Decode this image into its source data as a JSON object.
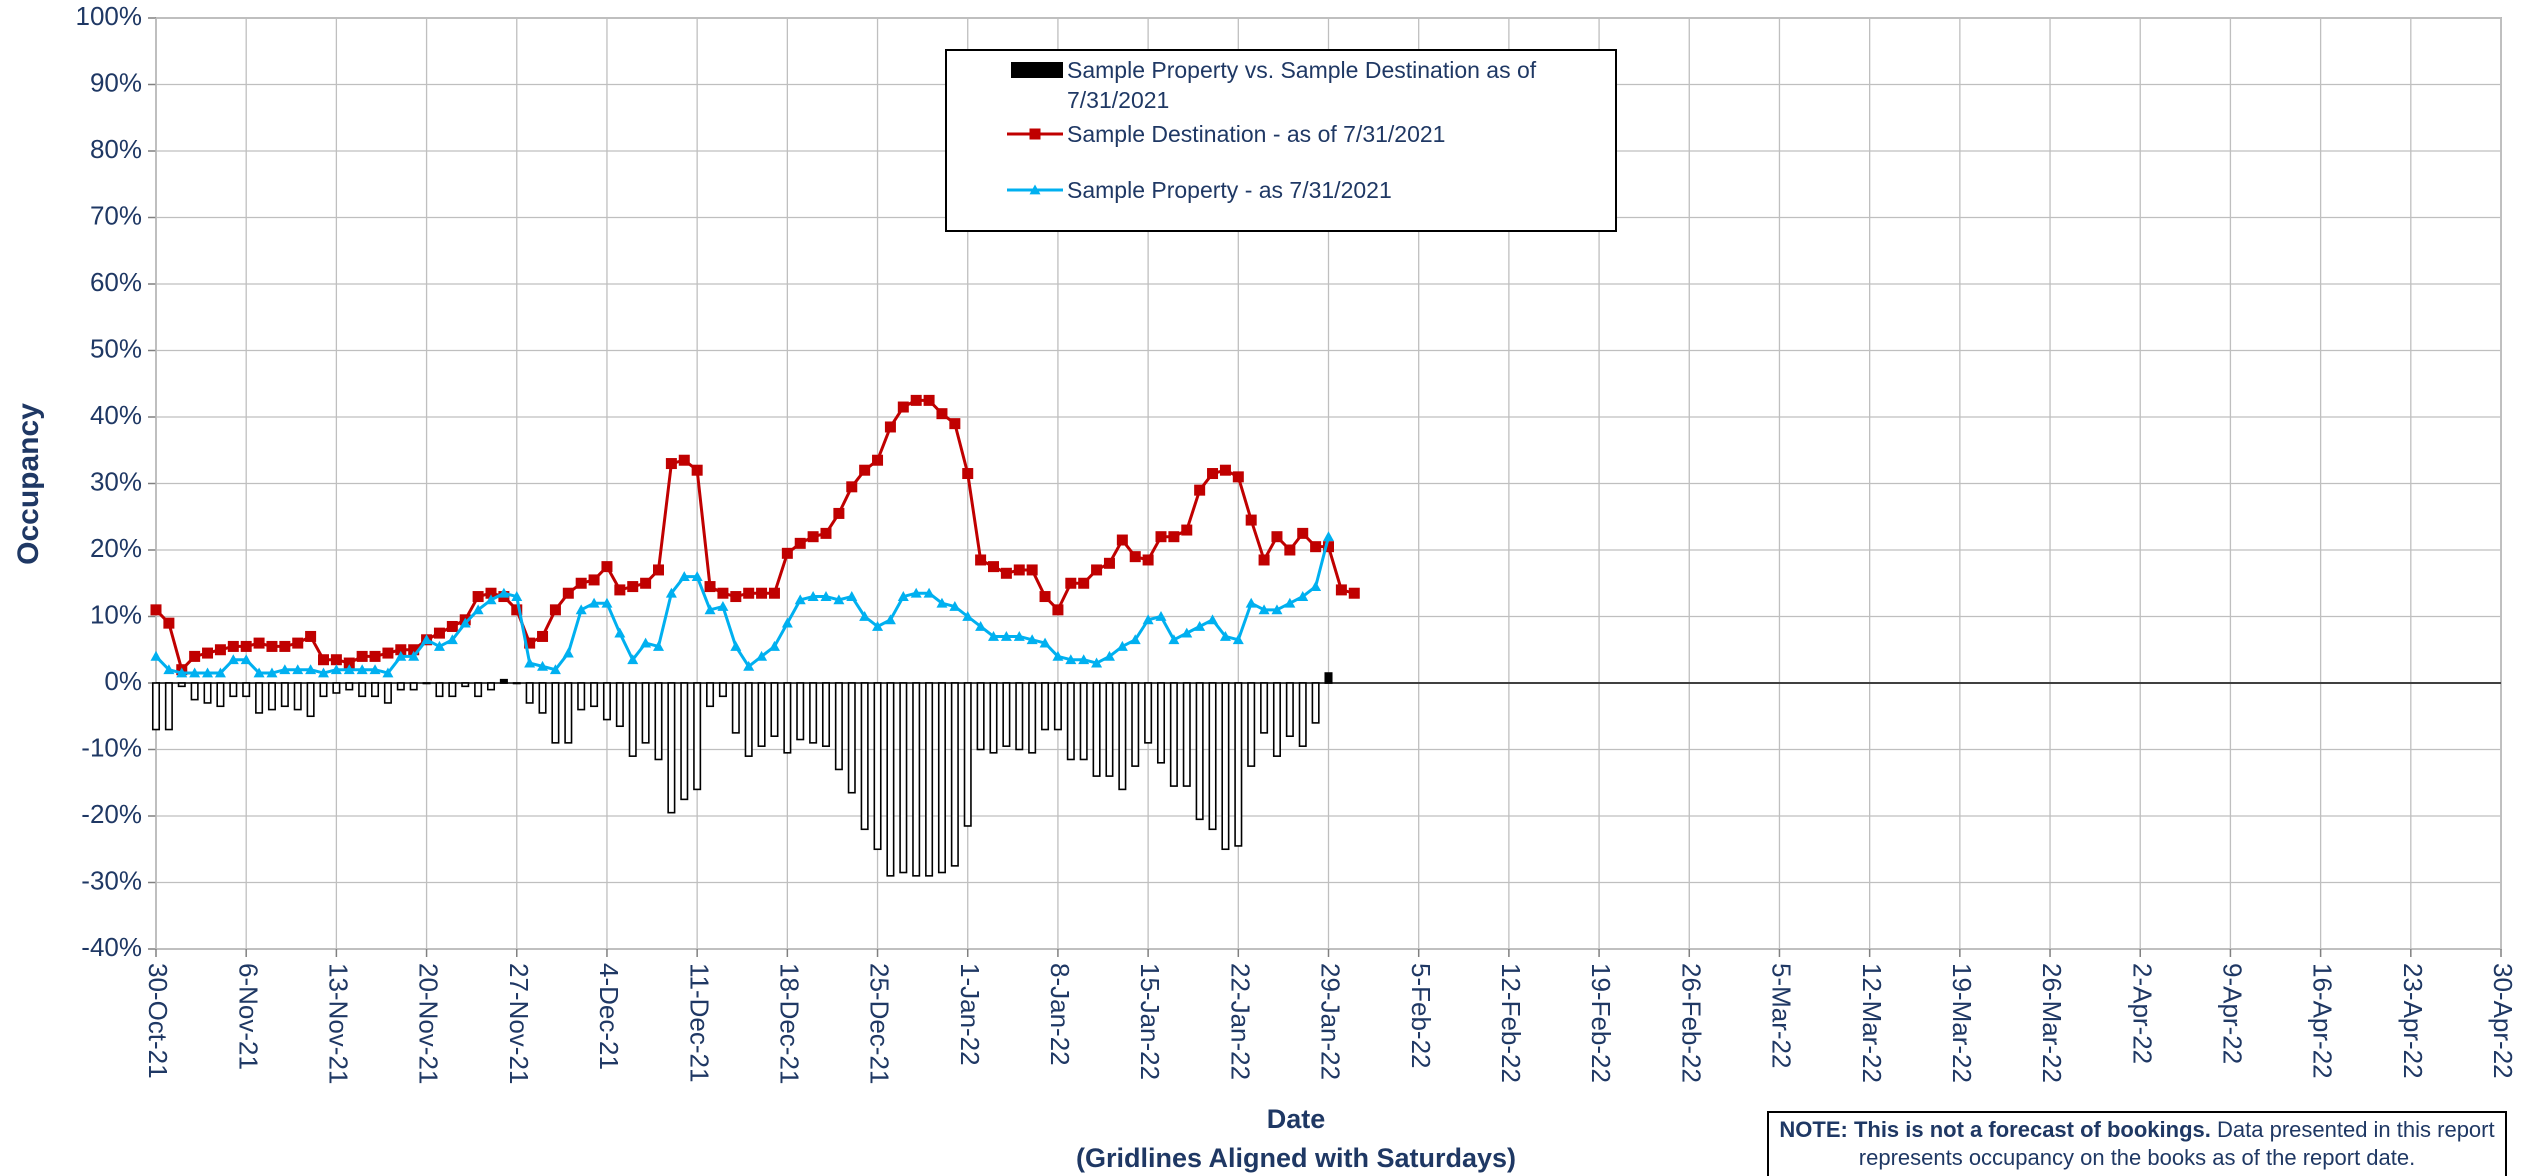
{
  "chart_data": {
    "type": "line",
    "ylabel": "Occupancy",
    "xlabel": [
      "Date",
      "(Gridlines Aligned with Saturdays)"
    ],
    "note": {
      "bold": "NOTE: This is not a forecast of bookings.",
      "text": "Data presented in this report represents occupancy on the books as of the report date."
    },
    "grid": true,
    "legend": "top",
    "xlim": [
      "2021-10-30",
      "2022-04-30"
    ],
    "xticks": [
      {
        "value": "2021-10-30",
        "label": "30-Oct-21"
      },
      {
        "value": "2021-11-06",
        "label": "6-Nov-21"
      },
      {
        "value": "2021-11-13",
        "label": "13-Nov-21"
      },
      {
        "value": "2021-11-20",
        "label": "20-Nov-21"
      },
      {
        "value": "2021-11-27",
        "label": "27-Nov-21"
      },
      {
        "value": "2021-12-04",
        "label": "4-Dec-21"
      },
      {
        "value": "2021-12-11",
        "label": "11-Dec-21"
      },
      {
        "value": "2021-12-18",
        "label": "18-Dec-21"
      },
      {
        "value": "2021-12-25",
        "label": "25-Dec-21"
      },
      {
        "value": "2022-01-01",
        "label": "1-Jan-22"
      },
      {
        "value": "2022-01-08",
        "label": "8-Jan-22"
      },
      {
        "value": "2022-01-15",
        "label": "15-Jan-22"
      },
      {
        "value": "2022-01-22",
        "label": "22-Jan-22"
      },
      {
        "value": "2022-01-29",
        "label": "29-Jan-22"
      },
      {
        "value": "2022-02-05",
        "label": "5-Feb-22"
      },
      {
        "value": "2022-02-12",
        "label": "12-Feb-22"
      },
      {
        "value": "2022-02-19",
        "label": "19-Feb-22"
      },
      {
        "value": "2022-02-26",
        "label": "26-Feb-22"
      },
      {
        "value": "2022-03-05",
        "label": "5-Mar-22"
      },
      {
        "value": "2022-03-12",
        "label": "12-Mar-22"
      },
      {
        "value": "2022-03-19",
        "label": "19-Mar-22"
      },
      {
        "value": "2022-03-26",
        "label": "26-Mar-22"
      },
      {
        "value": "2022-04-02",
        "label": "2-Apr-22"
      },
      {
        "value": "2022-04-09",
        "label": "9-Apr-22"
      },
      {
        "value": "2022-04-16",
        "label": "16-Apr-22"
      },
      {
        "value": "2022-04-23",
        "label": "23-Apr-22"
      },
      {
        "value": "2022-04-30",
        "label": "30-Apr-22"
      }
    ],
    "ylim": [
      -40,
      100
    ],
    "yticks": [
      {
        "value": -40,
        "label": "-40%"
      },
      {
        "value": -30,
        "label": "-30%"
      },
      {
        "value": -20,
        "label": "-20%"
      },
      {
        "value": -10,
        "label": "-10%"
      },
      {
        "value": 0,
        "label": "0%"
      },
      {
        "value": 10,
        "label": "10%"
      },
      {
        "value": 20,
        "label": "20%"
      },
      {
        "value": 30,
        "label": "30%"
      },
      {
        "value": 40,
        "label": "40%"
      },
      {
        "value": 50,
        "label": "50%"
      },
      {
        "value": 60,
        "label": "60%"
      },
      {
        "value": 70,
        "label": "70%"
      },
      {
        "value": 80,
        "label": "80%"
      },
      {
        "value": 90,
        "label": "90%"
      },
      {
        "value": 100,
        "label": "100%"
      }
    ],
    "x": [
      "2021-10-30",
      "2021-10-31",
      "2021-11-01",
      "2021-11-02",
      "2021-11-03",
      "2021-11-04",
      "2021-11-05",
      "2021-11-06",
      "2021-11-07",
      "2021-11-08",
      "2021-11-09",
      "2021-11-10",
      "2021-11-11",
      "2021-11-12",
      "2021-11-13",
      "2021-11-14",
      "2021-11-15",
      "2021-11-16",
      "2021-11-17",
      "2021-11-18",
      "2021-11-19",
      "2021-11-20",
      "2021-11-21",
      "2021-11-22",
      "2021-11-23",
      "2021-11-24",
      "2021-11-25",
      "2021-11-26",
      "2021-11-27",
      "2021-11-28",
      "2021-11-29",
      "2021-11-30",
      "2021-12-01",
      "2021-12-02",
      "2021-12-03",
      "2021-12-04",
      "2021-12-05",
      "2021-12-06",
      "2021-12-07",
      "2021-12-08",
      "2021-12-09",
      "2021-12-10",
      "2021-12-11",
      "2021-12-12",
      "2021-12-13",
      "2021-12-14",
      "2021-12-15",
      "2021-12-16",
      "2021-12-17",
      "2021-12-18",
      "2021-12-19",
      "2021-12-20",
      "2021-12-21",
      "2021-12-22",
      "2021-12-23",
      "2021-12-24",
      "2021-12-25",
      "2021-12-26",
      "2021-12-27",
      "2021-12-28",
      "2021-12-29",
      "2021-12-30",
      "2021-12-31",
      "2022-01-01",
      "2022-01-02",
      "2022-01-03",
      "2022-01-04",
      "2022-01-05",
      "2022-01-06",
      "2022-01-07",
      "2022-01-08",
      "2022-01-09",
      "2022-01-10",
      "2022-01-11",
      "2022-01-12",
      "2022-01-13",
      "2022-01-14",
      "2022-01-15",
      "2022-01-16",
      "2022-01-17",
      "2022-01-18",
      "2022-01-19",
      "2022-01-20",
      "2022-01-21",
      "2022-01-22",
      "2022-01-23",
      "2022-01-24",
      "2022-01-25",
      "2022-01-26",
      "2022-01-27",
      "2022-01-28",
      "2022-01-29",
      "2022-01-30",
      "2022-01-31"
    ],
    "series": [
      {
        "name": "Sample Property vs. Sample Destination as of 7/31/2021",
        "type": "bar",
        "color": "#000000",
        "values": [
          -7,
          -7,
          -0.5,
          -2.5,
          -3,
          -3.5,
          -2,
          -2,
          -4.5,
          -4,
          -3.5,
          -4,
          -5,
          -2,
          -1.5,
          -1,
          -2,
          -2,
          -3,
          -1,
          -1,
          0,
          -2,
          -2,
          -0.5,
          -2,
          -1,
          0.5,
          0,
          -3,
          -4.5,
          -9,
          -9,
          -4,
          -3.5,
          -5.5,
          -6.5,
          -11,
          -9,
          -11.5,
          -19.5,
          -17.5,
          -16,
          -3.5,
          -2,
          -7.5,
          -11,
          -9.5,
          -8,
          -10.5,
          -8.5,
          -9,
          -9.5,
          -13,
          -16.5,
          -22,
          -25,
          -29,
          -28.5,
          -29,
          -29,
          -28.5,
          -27.5,
          -21.5,
          -10,
          -10.5,
          -9.5,
          -10,
          -10.5,
          -7,
          -7,
          -11.5,
          -11.5,
          -14,
          -14,
          -16,
          -12.5,
          -9,
          -12,
          -15.5,
          -15.5,
          -20.5,
          -22,
          -25,
          -24.5,
          -12.5,
          -7.5,
          -11,
          -8,
          -9.5,
          -6,
          1.5,
          null,
          null
        ]
      },
      {
        "name": "Sample Destination - as of 7/31/2021",
        "type": "line",
        "marker": "square",
        "color": "#c00000",
        "values": [
          11,
          9,
          2,
          4,
          4.5,
          5,
          5.5,
          5.5,
          6,
          5.5,
          5.5,
          6,
          7,
          3.5,
          3.5,
          3,
          4,
          4,
          4.5,
          5,
          5,
          6.5,
          7.5,
          8.5,
          9.5,
          13,
          13.5,
          13,
          11,
          6,
          7,
          11,
          13.5,
          15,
          15.5,
          17.5,
          14,
          14.5,
          15,
          17,
          33,
          33.5,
          32,
          14.5,
          13.5,
          13,
          13.5,
          13.5,
          13.5,
          19.5,
          21,
          22,
          22.5,
          25.5,
          29.5,
          32,
          33.5,
          38.5,
          41.5,
          42.5,
          42.5,
          40.5,
          39,
          31.5,
          18.5,
          17.5,
          16.5,
          17,
          17,
          13,
          11,
          15,
          15,
          17,
          18,
          21.5,
          19,
          18.5,
          22,
          22,
          23,
          29,
          31.5,
          32,
          31,
          24.5,
          18.5,
          22,
          20,
          22.5,
          20.5,
          20.5,
          14,
          13.5
        ]
      },
      {
        "name": "Sample Property - as 7/31/2021",
        "type": "line",
        "marker": "triangle",
        "color": "#00b0f0",
        "values": [
          4,
          2,
          1.5,
          1.5,
          1.5,
          1.5,
          3.5,
          3.5,
          1.5,
          1.5,
          2,
          2,
          2,
          1.5,
          2,
          2,
          2,
          2,
          1.5,
          4,
          4,
          6.5,
          5.5,
          6.5,
          9,
          11,
          12.5,
          13.5,
          13,
          3,
          2.5,
          2,
          4.5,
          11,
          12,
          12,
          7.5,
          3.5,
          6,
          5.5,
          13.5,
          16,
          16,
          11,
          11.5,
          5.5,
          2.5,
          4,
          5.5,
          9,
          12.5,
          13,
          13,
          12.5,
          13,
          10,
          8.5,
          9.5,
          13,
          13.5,
          13.5,
          12,
          11.5,
          10,
          8.5,
          7,
          7,
          7,
          6.5,
          6,
          4,
          3.5,
          3.5,
          3,
          4,
          5.5,
          6.5,
          9.5,
          10,
          6.5,
          7.5,
          8.5,
          9.5,
          7,
          6.5,
          12,
          11,
          11,
          12,
          13,
          14.5,
          22,
          null,
          null
        ]
      }
    ]
  }
}
